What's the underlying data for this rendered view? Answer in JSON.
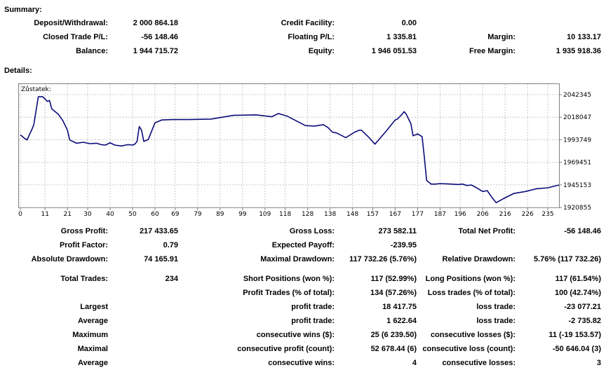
{
  "summary": {
    "title": "Summary:",
    "rows": [
      [
        {
          "label": "Deposit/Withdrawal:",
          "value": "2 000 864.18"
        },
        {
          "label": "Credit Facility:",
          "value": "0.00"
        },
        {
          "label": "",
          "value": ""
        }
      ],
      [
        {
          "label": "Closed Trade P/L:",
          "value": "-56 148.46"
        },
        {
          "label": "Floating P/L:",
          "value": "1 335.81"
        },
        {
          "label": "Margin:",
          "value": "10 133.17"
        }
      ],
      [
        {
          "label": "Balance:",
          "value": "1 944 715.72"
        },
        {
          "label": "Equity:",
          "value": "1 946 051.53"
        },
        {
          "label": "Free Margin:",
          "value": "1 935 918.36"
        }
      ]
    ]
  },
  "details": {
    "title": "Details:",
    "stats": [
      [
        {
          "label": "Gross Profit:",
          "value": "217 433.65"
        },
        {
          "label": "Gross Loss:",
          "value": "273 582.11"
        },
        {
          "label": "Total Net Profit:",
          "value": "-56 148.46"
        }
      ],
      [
        {
          "label": "Profit Factor:",
          "value": "0.79"
        },
        {
          "label": "Expected Payoff:",
          "value": "-239.95"
        },
        {
          "label": "",
          "value": ""
        }
      ],
      [
        {
          "label": "Absolute Drawdown:",
          "value": "74 165.91"
        },
        {
          "label": "Maximal Drawdown:",
          "value": "117 732.26 (5.76%)"
        },
        {
          "label": "Relative Drawdown:",
          "value": "5.76% (117 732.26)"
        }
      ],
      [
        {
          "label": "Total Trades:",
          "value": "234"
        },
        {
          "label": "Short Positions (won %):",
          "value": "117 (52.99%)"
        },
        {
          "label": "Long Positions (won %):",
          "value": "117 (61.54%)"
        }
      ],
      [
        {
          "label": "",
          "value": ""
        },
        {
          "label": "Profit Trades (% of total):",
          "value": "134 (57.26%)"
        },
        {
          "label": "Loss trades (% of total):",
          "value": "100 (42.74%)"
        }
      ],
      [
        {
          "label": "Largest",
          "value": ""
        },
        {
          "label": "profit trade:",
          "value": "18 417.75"
        },
        {
          "label": "loss trade:",
          "value": "-23 077.21"
        }
      ],
      [
        {
          "label": "Average",
          "value": ""
        },
        {
          "label": "profit trade:",
          "value": "1 622.64"
        },
        {
          "label": "loss trade:",
          "value": "-2 735.82"
        }
      ],
      [
        {
          "label": "Maximum",
          "value": ""
        },
        {
          "label": "consecutive wins ($):",
          "value": "25 (6 239.50)"
        },
        {
          "label": "consecutive losses ($):",
          "value": "11 (-19 153.57)"
        }
      ],
      [
        {
          "label": "Maximal",
          "value": ""
        },
        {
          "label": "consecutive profit (count):",
          "value": "52 678.44 (6)"
        },
        {
          "label": "consecutive loss (count):",
          "value": "-50 646.04 (3)"
        }
      ],
      [
        {
          "label": "Average",
          "value": ""
        },
        {
          "label": "consecutive wins:",
          "value": "4"
        },
        {
          "label": "consecutive losses:",
          "value": "3"
        }
      ]
    ]
  },
  "chart_data": {
    "type": "line",
    "title": "Zůstatek:",
    "line_color": "#0b0b7a",
    "grid_color": "#c8c8c8",
    "xlim": [
      0,
      240
    ],
    "ylim": [
      1918000,
      2048000
    ],
    "x_ticks": [
      "0",
      "11",
      "21",
      "30",
      "40",
      "50",
      "60",
      "69",
      "79",
      "89",
      "99",
      "109",
      "118",
      "128",
      "138",
      "148",
      "157",
      "167",
      "177",
      "187",
      "196",
      "206",
      "216",
      "226",
      "235"
    ],
    "y_ticks": [
      "2042345",
      "2018047",
      "1993749",
      "1969451",
      "1945153",
      "1920855"
    ],
    "y_tick_values": [
      2042345,
      2018047,
      1993749,
      1969451,
      1945153,
      1920855
    ],
    "series": [
      {
        "x": [
          0,
          2,
          3,
          4,
          5,
          6,
          8,
          10,
          12,
          13,
          14,
          15,
          17,
          19,
          21,
          22,
          25,
          28,
          31,
          34,
          36,
          38,
          40,
          42,
          45,
          48,
          50,
          51,
          52,
          53,
          54,
          55,
          57,
          60,
          63,
          68,
          75,
          85,
          95,
          105,
          112,
          115,
          119,
          123,
          127,
          131,
          135,
          137,
          139,
          141,
          145,
          149,
          151,
          152,
          155,
          158,
          163,
          167,
          168,
          170,
          171,
          172,
          174,
          175,
          177,
          179,
          180,
          181,
          183,
          185,
          187,
          192,
          195,
          197,
          199,
          201,
          204,
          206,
          208,
          210,
          212,
          215,
          220,
          225,
          230,
          235,
          240
        ],
        "y": [
          1999000,
          1995000,
          1993500,
          1999000,
          2004000,
          2010000,
          2040000,
          2040000,
          2035000,
          2036000,
          2027000,
          2025000,
          2021000,
          2014000,
          2004000,
          1993500,
          1990000,
          1991000,
          1989500,
          1990000,
          1988500,
          1988000,
          1990500,
          1988000,
          1987000,
          1988500,
          1988000,
          1989000,
          1992000,
          2008000,
          2004000,
          1992000,
          1994000,
          2012000,
          2015000,
          2015500,
          2015500,
          2016000,
          2020000,
          2020500,
          2018500,
          2022000,
          2019000,
          2014000,
          2009000,
          2008500,
          2010000,
          2007000,
          2002000,
          2001000,
          1996000,
          2002000,
          2004000,
          2004000,
          1997000,
          1989000,
          2003000,
          2015000,
          2016000,
          2021000,
          2024000,
          2021000,
          2011000,
          1998000,
          2000000,
          1997000,
          1975000,
          1950000,
          1946000,
          1946000,
          1946500,
          1946000,
          1945500,
          1946000,
          1944500,
          1945000,
          1941000,
          1938000,
          1939000,
          1932000,
          1926000,
          1930000,
          1936000,
          1938000,
          1941000,
          1942000,
          1945000
        ]
      }
    ]
  }
}
